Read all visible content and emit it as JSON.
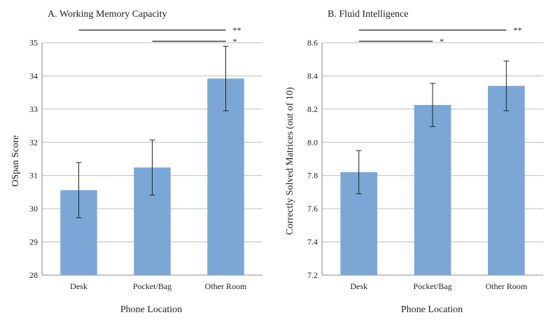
{
  "chart_data": [
    {
      "type": "bar",
      "title": "A. Working Memory Capacity",
      "xlabel": "Phone Location",
      "ylabel": "OSpan Score",
      "categories": [
        "Desk",
        "Pocket/Bag",
        "Other Room"
      ],
      "values": [
        30.56,
        31.24,
        33.92
      ],
      "errors": [
        0.83,
        0.83,
        0.97
      ],
      "ylim": [
        28,
        35
      ],
      "yticks": [
        "28",
        "29",
        "30",
        "31",
        "32",
        "33",
        "34",
        "35"
      ],
      "grid": true,
      "bar_color": "#7ba7d6",
      "significance": [
        {
          "from": "Desk",
          "to": "Other Room",
          "label": "**"
        },
        {
          "from": "Pocket/Bag",
          "to": "Other Room",
          "label": "*"
        }
      ]
    },
    {
      "type": "bar",
      "title": "B. Fluid Intelligence",
      "xlabel": "Phone Location",
      "ylabel": "Correctly Solved Matrices (out of 10)",
      "categories": [
        "Desk",
        "Pocket/Bag",
        "Other Room"
      ],
      "values": [
        7.82,
        8.225,
        8.34
      ],
      "errors": [
        0.13,
        0.13,
        0.15
      ],
      "ylim": [
        7.2,
        8.6
      ],
      "yticks": [
        "7.2",
        "7.4",
        "7.6",
        "7.8",
        "8.0",
        "8.2",
        "8.4",
        "8.6"
      ],
      "grid": true,
      "bar_color": "#7ba7d6",
      "significance": [
        {
          "from": "Desk",
          "to": "Other Room",
          "label": "**"
        },
        {
          "from": "Desk",
          "to": "Pocket/Bag",
          "label": "*"
        }
      ]
    }
  ]
}
